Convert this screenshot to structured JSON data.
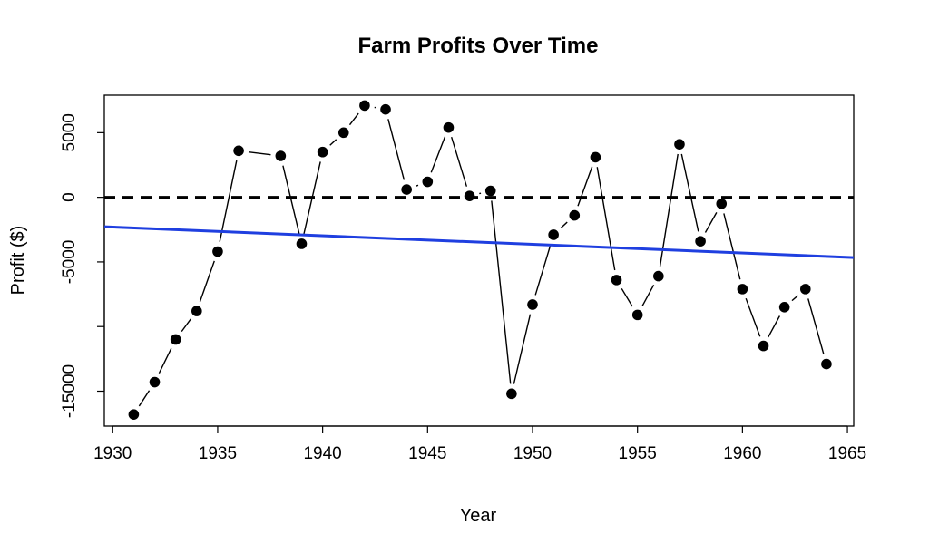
{
  "chart_data": {
    "type": "line",
    "title": "Farm Profits Over Time",
    "xlabel": "Year",
    "ylabel": "Profit ($)",
    "xlim": [
      1929.6,
      1965.3
    ],
    "ylim": [
      -17700,
      7900
    ],
    "xticks": [
      1930,
      1935,
      1940,
      1945,
      1950,
      1955,
      1960,
      1965
    ],
    "xtick_labels": [
      "1930",
      "1935",
      "1940",
      "1945",
      "1950",
      "1955",
      "1960",
      "1965"
    ],
    "yticks": [
      -15000,
      -10000,
      -5000,
      0,
      5000
    ],
    "ytick_labels": [
      "-15000",
      "",
      "-5000",
      "0",
      "5000"
    ],
    "grid": false,
    "series": [
      {
        "style": "points-and-lines",
        "color": "#000000",
        "x": [
          1931,
          1932,
          1933,
          1934,
          1935,
          1936,
          1938,
          1939,
          1940,
          1941,
          1942,
          1943,
          1944,
          1945,
          1946,
          1947,
          1948,
          1949,
          1950,
          1951,
          1952,
          1953,
          1954,
          1955,
          1956,
          1957,
          1958,
          1959,
          1960,
          1961,
          1962,
          1963,
          1964
        ],
        "y": [
          -16800,
          -14300,
          -11000,
          -8800,
          -4200,
          3600,
          3200,
          -3600,
          3500,
          5000,
          7100,
          6800,
          600,
          1200,
          5400,
          100,
          500,
          -15200,
          -8300,
          -2900,
          -1400,
          3100,
          -6400,
          -9100,
          -6100,
          4100,
          -3400,
          -500,
          -7100,
          -11500,
          -8500,
          -7100,
          -12900
        ]
      },
      {
        "style": "dashed-line",
        "color": "#000000",
        "x": [
          1929.6,
          1965.3
        ],
        "y": [
          0,
          0
        ]
      },
      {
        "style": "trend-line",
        "color": "#1f3fe0",
        "x": [
          1929.6,
          1965.3
        ],
        "y": [
          -2280,
          -4660
        ]
      }
    ]
  }
}
